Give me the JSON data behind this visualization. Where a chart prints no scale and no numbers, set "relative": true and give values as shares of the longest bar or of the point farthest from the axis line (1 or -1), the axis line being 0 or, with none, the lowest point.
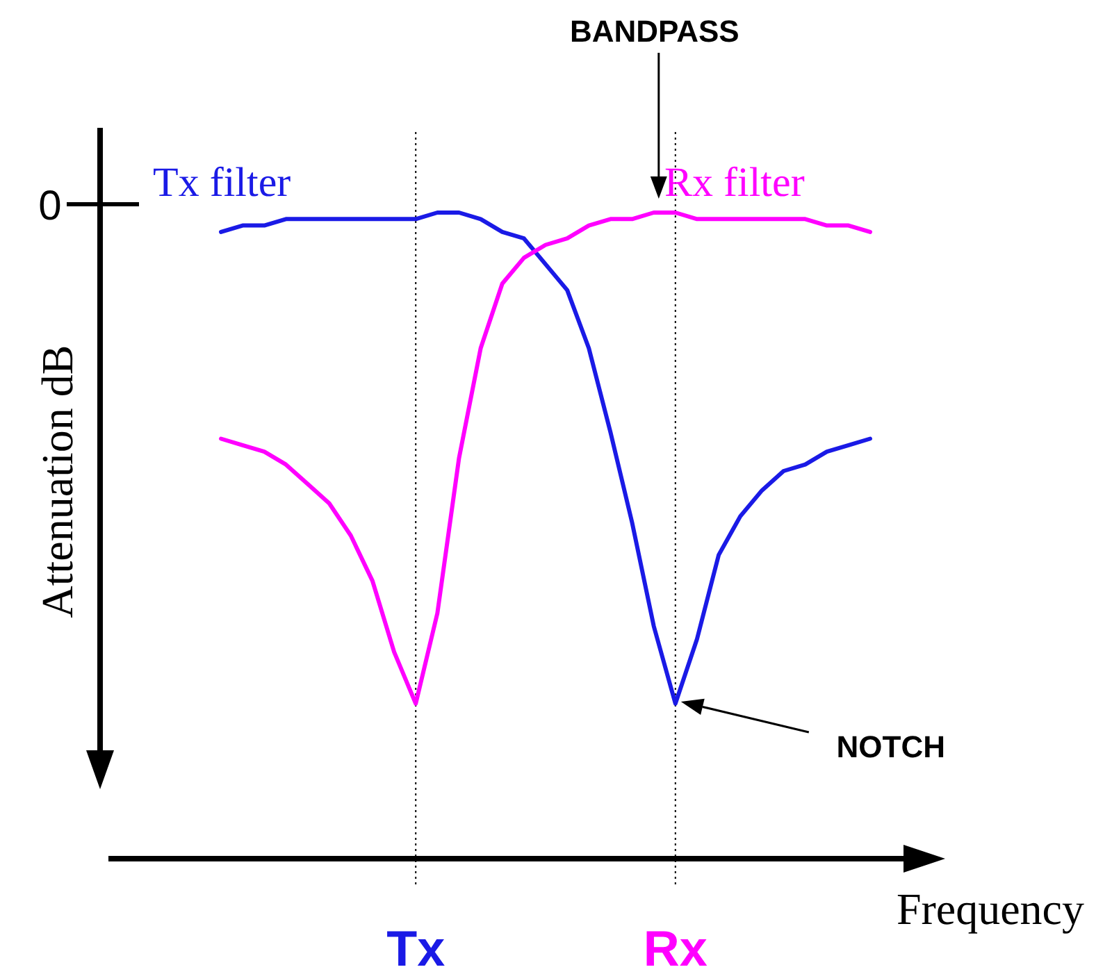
{
  "chart_data": {
    "type": "line",
    "relative": true,
    "xlabel": "Frequency",
    "ylabel": "Attenuation dB",
    "categories": [
      null,
      null,
      null,
      null,
      null,
      null,
      null,
      null,
      null,
      "Tx",
      null,
      null,
      null,
      null,
      null,
      null,
      null,
      null,
      null,
      null,
      null,
      "Rx",
      null,
      null,
      null,
      null,
      null,
      null,
      null,
      null,
      null
    ],
    "series": [
      {
        "name": "Tx filter",
        "color": "#1a1ae6",
        "values": [
          0.97,
          0.98,
          0.98,
          0.99,
          0.99,
          0.99,
          0.99,
          0.99,
          0.99,
          0.99,
          1,
          1,
          0.99,
          0.97,
          0.96,
          0.92,
          0.88,
          0.79,
          0.66,
          0.52,
          0.36,
          0.24,
          0.34,
          0.47,
          0.53,
          0.57,
          0.6,
          0.61,
          0.63,
          0.64,
          0.65
        ]
      },
      {
        "name": "Rx filter",
        "color": "#ff00ff",
        "values": [
          0.65,
          0.64,
          0.63,
          0.61,
          0.58,
          0.55,
          0.5,
          0.43,
          0.32,
          0.24,
          0.38,
          0.62,
          0.79,
          0.89,
          0.93,
          0.95,
          0.96,
          0.98,
          0.99,
          0.99,
          1,
          1,
          0.99,
          0.99,
          0.99,
          0.99,
          0.99,
          0.99,
          0.98,
          0.98,
          0.97
        ]
      }
    ],
    "ref_lines": [
      {
        "axis": "x",
        "value": "Tx",
        "color": "#000000",
        "line_style": "dotted"
      },
      {
        "axis": "x",
        "value": "Rx",
        "color": "#000000",
        "line_style": "dotted"
      }
    ],
    "annotations": [
      "0",
      "BANDPASS",
      "NOTCH"
    ]
  }
}
